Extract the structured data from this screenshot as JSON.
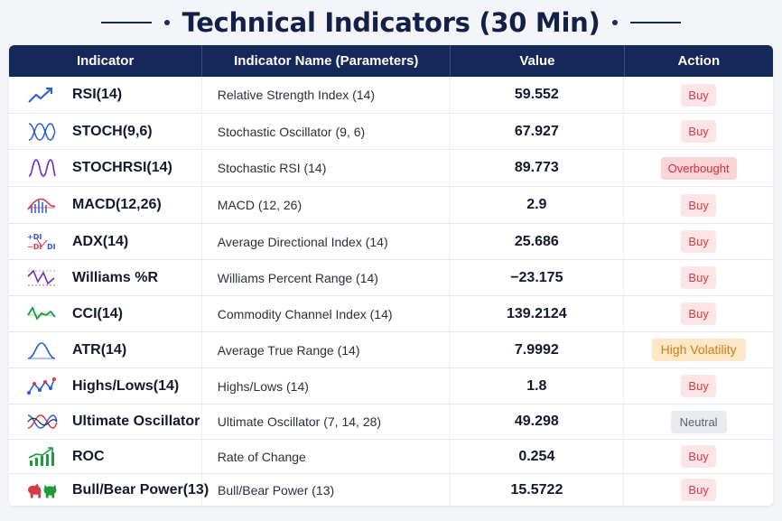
{
  "title": "Technical Indicators (30 Min)",
  "headers": {
    "indicator": "Indicator",
    "name": "Indicator Name (Parameters)",
    "value": "Value",
    "action": "Action"
  },
  "rows": [
    {
      "code": "RSI(14)",
      "name": "Relative Strength Index (14)",
      "value": "59.552",
      "action": "Buy",
      "action_type": "buy",
      "icon": "trend-up-icon"
    },
    {
      "code": "STOCH(9,6)",
      "name": "Stochastic Oscillator (9, 6)",
      "value": "67.927",
      "action": "Buy",
      "action_type": "buy",
      "icon": "wave-cross-icon"
    },
    {
      "code": "STOCHRSI(14)",
      "name": "Stochastic RSI (14)",
      "value": "89.773",
      "action": "Overbought",
      "action_type": "over",
      "icon": "wave-icon"
    },
    {
      "code": "MACD(12,26)",
      "name": "MACD (12, 26)",
      "value": "2.9",
      "action": "Buy",
      "action_type": "buy",
      "icon": "macd-histogram-icon"
    },
    {
      "code": "ADX(14)",
      "name": "Average Directional Index (14)",
      "value": "25.686",
      "action": "Buy",
      "action_type": "buy",
      "icon": "adx-di-icon"
    },
    {
      "code": "Williams %R",
      "name": "Williams Percent Range (14)",
      "value": "−23.175",
      "action": "Buy",
      "action_type": "buy",
      "icon": "zigzag-icon"
    },
    {
      "code": "CCI(14)",
      "name": "Commodity Channel Index (14)",
      "value": "139.2124",
      "action": "Buy",
      "action_type": "buy",
      "icon": "oscillator-line-icon"
    },
    {
      "code": "ATR(14)",
      "name": "Average True Range (14)",
      "value": "7.9992",
      "action": "High Volatility",
      "action_type": "hv",
      "icon": "bell-curve-icon"
    },
    {
      "code": "Highs/Lows(14)",
      "name": "Highs/Lows (14)",
      "value": "1.8",
      "action": "Buy",
      "action_type": "buy",
      "icon": "highs-lows-icon"
    },
    {
      "code": "Ultimate Oscillator",
      "name": "Ultimate Oscillator (7, 14, 28)",
      "value": "49.298",
      "action": "Neutral",
      "action_type": "neutral",
      "icon": "triple-wave-icon"
    },
    {
      "code": "ROC",
      "name": "Rate of Change",
      "value": "0.254",
      "action": "Buy",
      "action_type": "buy",
      "icon": "bar-growth-icon"
    },
    {
      "code": "Bull/Bear Power(13)",
      "name": "Bull/Bear Power (13)",
      "value": "15.5722",
      "action": "Buy",
      "action_type": "buy",
      "icon": "bull-bear-icon"
    }
  ],
  "icon_text": {
    "di_plus": "+DI",
    "di_minus": "−DI",
    "di": "DI"
  },
  "colors": {
    "header_bg": "#14295a",
    "buy_bg": "#fde4e6",
    "buy_text": "#d33b45",
    "overbought_bg": "#fbd4d7",
    "high_vol_bg": "#fde7c6",
    "high_vol_text": "#cf7c16",
    "neutral_bg": "#e9ebef",
    "neutral_text": "#5a6070"
  }
}
